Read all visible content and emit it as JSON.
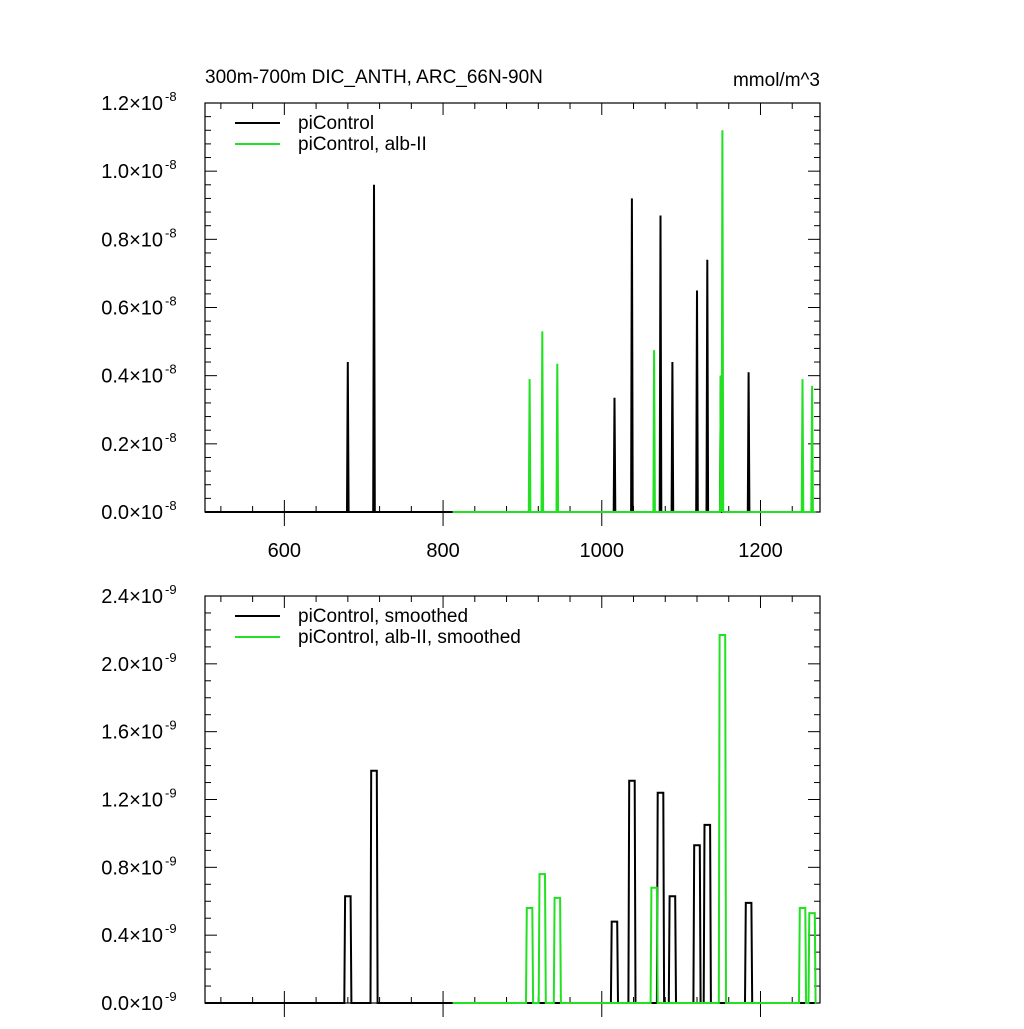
{
  "colors": {
    "control": "#000000",
    "alb": "#22e022"
  },
  "chart_data": [
    {
      "type": "line",
      "title": "300m-700m DIC_ANTH, ARC_66N-90N",
      "units": "mmol/m^3",
      "xlim": [
        500,
        1275
      ],
      "ylim": [
        0,
        1.2e-08
      ],
      "x_ticks": [
        600,
        800,
        1000,
        1200
      ],
      "x_tick_labels": [
        "600",
        "800",
        "1000",
        "1200"
      ],
      "y_ticks": [
        0,
        2e-09,
        4e-09,
        6e-09,
        8e-09,
        1e-08,
        1.2e-08
      ],
      "y_tick_labels": [
        {
          "mantissa": "0.0",
          "times": "×10",
          "exponent": "-8"
        },
        {
          "mantissa": "0.2",
          "times": "×10",
          "exponent": "-8"
        },
        {
          "mantissa": "0.4",
          "times": "×10",
          "exponent": "-8"
        },
        {
          "mantissa": "0.6",
          "times": "×10",
          "exponent": "-8"
        },
        {
          "mantissa": "0.8",
          "times": "×10",
          "exponent": "-8"
        },
        {
          "mantissa": "1.0",
          "times": "×10",
          "exponent": "-8"
        },
        {
          "mantissa": "1.2",
          "times": "×10",
          "exponent": "-8"
        }
      ],
      "legend": [
        "piControl",
        "piControl, alb-II"
      ],
      "series": [
        {
          "name": "piControl",
          "color_key": "control",
          "x_range": [
            500,
            1270
          ],
          "spike_width": 1,
          "spikes": [
            {
              "x": 680,
              "y": 4.4e-09
            },
            {
              "x": 713,
              "y": 9.6e-09
            },
            {
              "x": 1016,
              "y": 3.35e-09
            },
            {
              "x": 1038,
              "y": 9.2e-09
            },
            {
              "x": 1074,
              "y": 8.7e-09
            },
            {
              "x": 1089,
              "y": 4.4e-09
            },
            {
              "x": 1120,
              "y": 6.5e-09
            },
            {
              "x": 1133,
              "y": 7.4e-09
            },
            {
              "x": 1150,
              "y": 4e-09
            },
            {
              "x": 1185,
              "y": 4.1e-09
            }
          ]
        },
        {
          "name": "piControl, alb-II",
          "color_key": "alb",
          "x_range": [
            812,
            1270
          ],
          "spike_width": 1,
          "spikes": [
            {
              "x": 909,
              "y": 3.9e-09
            },
            {
              "x": 925,
              "y": 5.3e-09
            },
            {
              "x": 944,
              "y": 4.35e-09
            },
            {
              "x": 1066,
              "y": 4.75e-09
            },
            {
              "x": 1150,
              "y": 4e-09
            },
            {
              "x": 1152,
              "y": 1.12e-08
            },
            {
              "x": 1253,
              "y": 3.9e-09
            },
            {
              "x": 1265,
              "y": 3.7e-09
            }
          ]
        }
      ]
    },
    {
      "type": "line",
      "xlim": [
        500,
        1275
      ],
      "ylim": [
        0,
        2.4e-09
      ],
      "x_ticks": [
        600,
        800,
        1000,
        1200
      ],
      "y_ticks": [
        0,
        4e-10,
        8e-10,
        1.2e-09,
        1.6e-09,
        2e-09,
        2.4e-09
      ],
      "y_tick_labels": [
        {
          "mantissa": "0.0",
          "times": "×10",
          "exponent": "-9"
        },
        {
          "mantissa": "0.4",
          "times": "×10",
          "exponent": "-9"
        },
        {
          "mantissa": "0.8",
          "times": "×10",
          "exponent": "-9"
        },
        {
          "mantissa": "1.2",
          "times": "×10",
          "exponent": "-9"
        },
        {
          "mantissa": "1.6",
          "times": "×10",
          "exponent": "-9"
        },
        {
          "mantissa": "2.0",
          "times": "×10",
          "exponent": "-9"
        },
        {
          "mantissa": "2.4",
          "times": "×10",
          "exponent": "-9"
        }
      ],
      "legend": [
        "piControl, smoothed",
        "piControl, alb-II, smoothed"
      ],
      "series": [
        {
          "name": "piControl, smoothed",
          "color_key": "control",
          "x_range": [
            500,
            1270
          ],
          "spike_width": 7,
          "spikes": [
            {
              "x": 680,
              "y": 6.3e-10
            },
            {
              "x": 713,
              "y": 1.37e-09
            },
            {
              "x": 1016,
              "y": 4.8e-10
            },
            {
              "x": 1038,
              "y": 1.31e-09
            },
            {
              "x": 1074,
              "y": 1.24e-09
            },
            {
              "x": 1089,
              "y": 6.3e-10
            },
            {
              "x": 1120,
              "y": 9.3e-10
            },
            {
              "x": 1133,
              "y": 1.05e-09
            },
            {
              "x": 1185,
              "y": 5.9e-10
            }
          ]
        },
        {
          "name": "piControl, alb-II, smoothed",
          "color_key": "alb",
          "x_range": [
            812,
            1270
          ],
          "spike_width": 7,
          "spikes": [
            {
              "x": 909,
              "y": 5.6e-10
            },
            {
              "x": 925,
              "y": 7.6e-10
            },
            {
              "x": 944,
              "y": 6.2e-10
            },
            {
              "x": 1066,
              "y": 6.8e-10
            },
            {
              "x": 1152,
              "y": 2.17e-09
            },
            {
              "x": 1253,
              "y": 5.6e-10
            },
            {
              "x": 1265,
              "y": 5.3e-10
            }
          ]
        }
      ]
    }
  ]
}
